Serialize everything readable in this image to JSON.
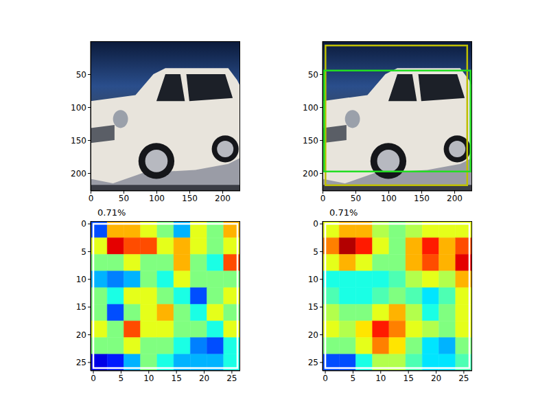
{
  "chart_data": [
    {
      "type": "image",
      "xlim": [
        -0.5,
        226.5
      ],
      "ylim": [
        226.5,
        -0.5
      ],
      "xticks": [
        0,
        50,
        100,
        150,
        200
      ],
      "yticks": [
        0,
        50,
        100,
        150,
        200
      ]
    },
    {
      "type": "image",
      "xlim": [
        -0.5,
        226.5
      ],
      "ylim": [
        226.5,
        -0.5
      ],
      "xticks": [
        0,
        50,
        100,
        150,
        200
      ],
      "yticks": [
        0,
        50,
        100,
        150,
        200
      ],
      "boxes": [
        {
          "color": "#bfbf00",
          "x": [
            4,
            219
          ],
          "y": [
            6,
            218
          ]
        },
        {
          "color": "#22dd22",
          "x": [
            2,
            224
          ],
          "y": [
            44,
            197
          ]
        }
      ]
    },
    {
      "type": "heatmap",
      "title": "0.71%",
      "xlim": [
        -0.5,
        26.5
      ],
      "ylim": [
        26.5,
        -0.5
      ],
      "xticks": [
        0,
        5,
        10,
        15,
        20,
        25
      ],
      "yticks": [
        0,
        5,
        10,
        15,
        20,
        25
      ],
      "x_edges": [
        -0.5,
        2.5,
        5.5,
        8.5,
        11.5,
        14.5,
        17.5,
        20.5,
        23.5,
        26.5
      ],
      "y_edges": [
        -0.5,
        2.5,
        5.5,
        8.5,
        11.5,
        14.5,
        17.5,
        20.5,
        23.5,
        26.5
      ],
      "color_range": [
        0,
        1
      ],
      "cells": [
        [
          0.2,
          0.7,
          0.7,
          0.6,
          0.5,
          0.3,
          0.6,
          0.5,
          0.7
        ],
        [
          0.6,
          0.9,
          0.8,
          0.8,
          0.6,
          0.7,
          0.6,
          0.5,
          0.6
        ],
        [
          0.5,
          0.5,
          0.6,
          0.5,
          0.5,
          0.7,
          0.5,
          0.4,
          0.8
        ],
        [
          0.3,
          0.25,
          0.3,
          0.5,
          0.4,
          0.6,
          0.5,
          0.5,
          0.5
        ],
        [
          0.5,
          0.4,
          0.6,
          0.6,
          0.5,
          0.4,
          0.2,
          0.5,
          0.6
        ],
        [
          0.5,
          0.2,
          0.5,
          0.6,
          0.7,
          0.5,
          0.4,
          0.6,
          0.5
        ],
        [
          0.6,
          0.5,
          0.8,
          0.6,
          0.6,
          0.5,
          0.5,
          0.4,
          0.6
        ],
        [
          0.5,
          0.5,
          0.6,
          0.5,
          0.5,
          0.4,
          0.25,
          0.2,
          0.4
        ],
        [
          0.1,
          0.15,
          0.3,
          0.5,
          0.4,
          0.3,
          0.3,
          0.3,
          0.4
        ]
      ],
      "boxes": [
        {
          "color": "#ffffff",
          "x": [
            0,
            26
          ],
          "y": [
            0,
            26
          ]
        }
      ]
    },
    {
      "type": "heatmap",
      "title": "0.71%",
      "xlim": [
        -0.5,
        26.5
      ],
      "ylim": [
        26.5,
        -0.5
      ],
      "xticks": [
        0,
        5,
        10,
        15,
        20,
        25
      ],
      "yticks": [
        0,
        5,
        10,
        15,
        20,
        25
      ],
      "x_edges": [
        -0.5,
        2.5,
        5.5,
        8.5,
        11.5,
        14.5,
        17.5,
        20.5,
        23.5,
        26.5
      ],
      "y_edges": [
        -0.5,
        2.5,
        5.5,
        8.5,
        11.5,
        14.5,
        17.5,
        20.5,
        23.5,
        26.5
      ],
      "color_range": [
        0,
        1
      ],
      "cells": [
        [
          0.6,
          0.7,
          0.7,
          0.55,
          0.5,
          0.55,
          0.6,
          0.6,
          0.6
        ],
        [
          0.75,
          0.95,
          0.85,
          0.6,
          0.5,
          0.7,
          0.85,
          0.7,
          0.8
        ],
        [
          0.6,
          0.7,
          0.6,
          0.5,
          0.5,
          0.7,
          0.8,
          0.7,
          0.9
        ],
        [
          0.4,
          0.4,
          0.4,
          0.4,
          0.45,
          0.55,
          0.6,
          0.55,
          0.7
        ],
        [
          0.45,
          0.4,
          0.4,
          0.45,
          0.5,
          0.45,
          0.35,
          0.45,
          0.6
        ],
        [
          0.55,
          0.5,
          0.5,
          0.6,
          0.7,
          0.55,
          0.4,
          0.5,
          0.6
        ],
        [
          0.6,
          0.55,
          0.65,
          0.85,
          0.75,
          0.6,
          0.55,
          0.5,
          0.6
        ],
        [
          0.5,
          0.5,
          0.6,
          0.75,
          0.65,
          0.5,
          0.35,
          0.3,
          0.5
        ],
        [
          0.2,
          0.2,
          0.4,
          0.55,
          0.55,
          0.45,
          0.35,
          0.35,
          0.45
        ]
      ],
      "boxes": [
        {
          "color": "#ffffff",
          "x": [
            0,
            26
          ],
          "y": [
            0,
            26
          ]
        }
      ]
    }
  ]
}
